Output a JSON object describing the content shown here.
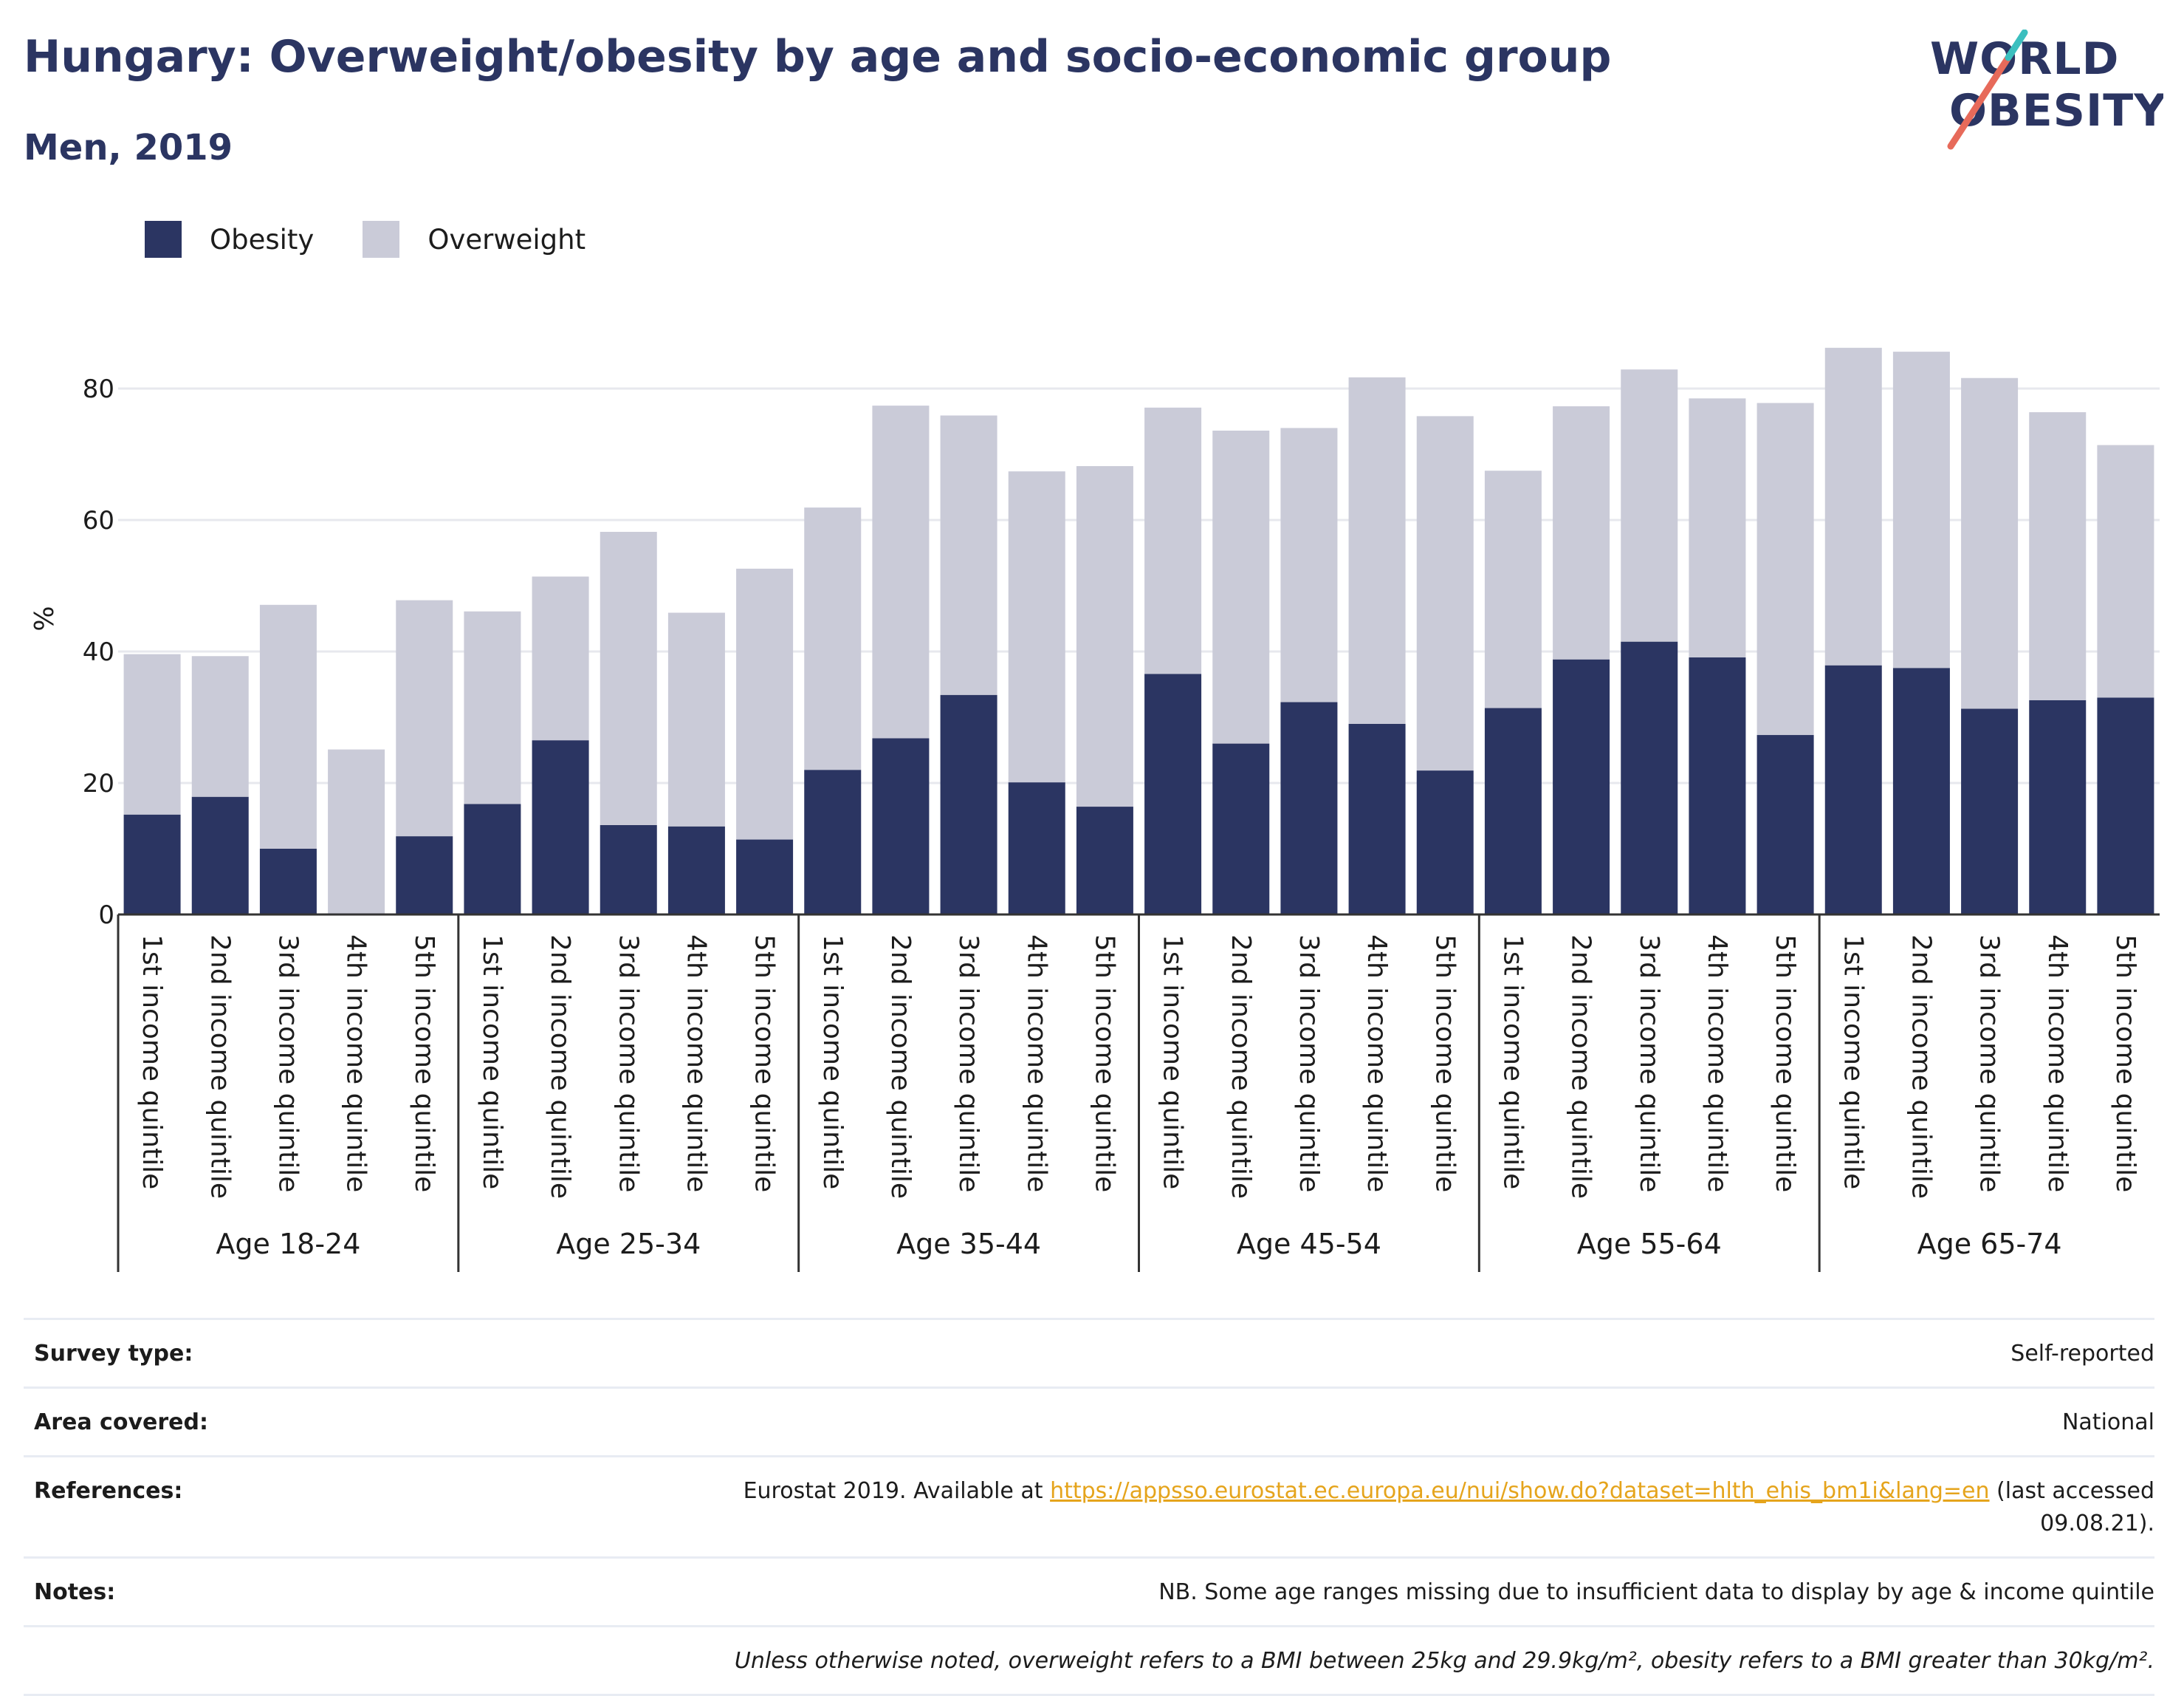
{
  "header": {
    "title": "Hungary: Overweight/obesity by age and socio-economic group",
    "subtitle": "Men, 2019",
    "logo_line1": "WORLD",
    "logo_line2": "OBESITY"
  },
  "legend": [
    {
      "label": "Obesity",
      "color": "#2b3562"
    },
    {
      "label": "Overweight",
      "color": "#cacbd8"
    }
  ],
  "chart_data": {
    "type": "bar",
    "stacked": true,
    "ylabel": "%",
    "ylim": [
      0,
      90
    ],
    "yticks": [
      0,
      20,
      40,
      60,
      80
    ],
    "grid": true,
    "legend_position": "top-left",
    "subcategories": [
      "1st income quintile",
      "2nd income quintile",
      "3rd income quintile",
      "4th income quintile",
      "5th income quintile"
    ],
    "groups": [
      "Age 18-24",
      "Age 25-34",
      "Age 35-44",
      "Age 45-54",
      "Age 55-64",
      "Age 65-74"
    ],
    "series": [
      {
        "name": "Obesity",
        "color": "#2b3562",
        "values": [
          15.2,
          17.9,
          10.0,
          0,
          11.9,
          16.8,
          26.5,
          13.6,
          13.4,
          11.4,
          22.0,
          26.8,
          33.4,
          20.1,
          16.4,
          36.6,
          26.0,
          32.3,
          29.0,
          21.9,
          31.4,
          38.8,
          41.5,
          39.1,
          27.3,
          37.9,
          37.5,
          31.3,
          32.6,
          33.0
        ]
      },
      {
        "name": "Overweight",
        "color": "#cacbd8",
        "values": [
          24.4,
          21.4,
          37.1,
          25.1,
          35.9,
          29.3,
          24.9,
          44.6,
          32.5,
          41.2,
          39.9,
          50.6,
          42.5,
          47.3,
          51.8,
          40.5,
          47.6,
          41.7,
          52.7,
          53.9,
          36.1,
          38.5,
          41.4,
          39.4,
          50.5,
          48.3,
          48.1,
          50.3,
          43.8,
          38.4
        ]
      }
    ]
  },
  "meta": {
    "survey_label": "Survey type:",
    "survey_value": "Self-reported",
    "area_label": "Area covered:",
    "area_value": "National",
    "references_label": "References:",
    "references_prefix": "Eurostat 2019. Available at ",
    "references_link": "https://appsso.eurostat.ec.europa.eu/nui/show.do?dataset=hlth_ehis_bm1i&lang=en",
    "references_suffix": " (last accessed 09.08.21).",
    "notes_label": "Notes:",
    "notes_value": "NB. Some age ranges missing due to insufficient data to display by age & income quintile",
    "footnote": "Unless otherwise noted, overweight refers to a BMI between 25kg and 29.9kg/m², obesity refers to a BMI greater than 30kg/m²."
  }
}
